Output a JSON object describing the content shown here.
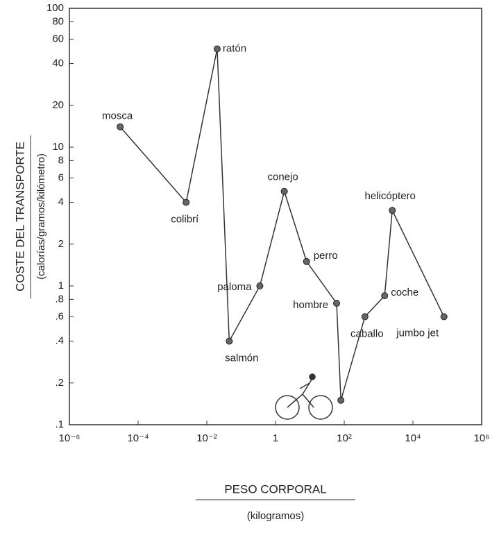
{
  "chart_data": {
    "type": "line",
    "xlabel": "PESO CORPORAL",
    "xlabel_sub": "(kilogramos)",
    "ylabel": "COSTE DEL TRANSPORTE",
    "ylabel_sub": "(calorías/gramos/kilómetro)",
    "xscale": "log",
    "yscale": "log",
    "color": "#333333",
    "point_labels": [
      "mosca",
      "colibrí",
      "ratón",
      "salmón",
      "paloma",
      "conejo",
      "perro",
      "hombre",
      null,
      "caballo",
      "coche",
      "helicóptero",
      "jumbo jet"
    ],
    "x": [
      3e-05,
      0.0025,
      0.02,
      0.045,
      0.35,
      1.8,
      8,
      60,
      80,
      400,
      1500,
      2500,
      80000
    ],
    "values": [
      14,
      4,
      51,
      0.4,
      1,
      4.8,
      1.5,
      0.75,
      0.15,
      0.6,
      0.85,
      3.5,
      0.6
    ],
    "xlim": [
      1e-06,
      1000000
    ],
    "ylim": [
      0.1,
      100
    ],
    "xticks": [
      {
        "value": 1e-06,
        "label": "10⁻⁶"
      },
      {
        "value": 0.0001,
        "label": "10⁻⁴"
      },
      {
        "value": 0.01,
        "label": "10⁻²"
      },
      1,
      {
        "value": 100,
        "label": "10²"
      },
      {
        "value": 10000,
        "label": "10⁴"
      },
      {
        "value": 1000000,
        "label": "10⁶"
      }
    ],
    "yticks": [
      {
        "value": 0.1,
        "label": ".1"
      },
      {
        "value": 0.2,
        "label": ".2"
      },
      {
        "value": 0.4,
        "label": ".4"
      },
      {
        "value": 0.6,
        "label": ".6"
      },
      {
        "value": 0.8,
        "label": ".8"
      },
      1,
      2,
      4,
      6,
      8,
      10,
      20,
      40,
      60,
      80,
      100
    ]
  }
}
